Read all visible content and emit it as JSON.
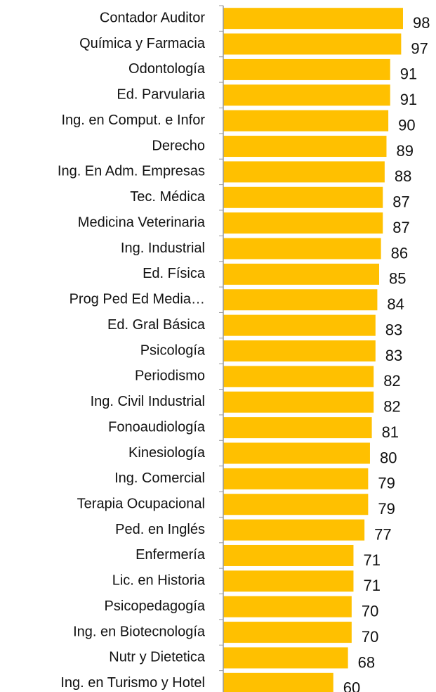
{
  "chart_data": {
    "type": "bar",
    "orientation": "horizontal",
    "categories": [
      "Contador Auditor",
      "Química y Farmacia",
      "Odontología",
      "Ed. Parvularia",
      "Ing. en Comput. e Infor",
      "Derecho",
      "Ing. En Adm. Empresas",
      "Tec. Médica",
      "Medicina Veterinaria",
      "Ing. Industrial",
      "Ed. Física",
      "Prog Ped Ed Media…",
      "Ed. Gral Básica",
      "Psicología",
      "Periodismo",
      "Ing. Civil Industrial",
      "Fonoaudiología",
      "Kinesiología",
      "Ing. Comercial",
      "Terapia Ocupacional",
      "Ped. en Inglés",
      "Enfermería",
      "Lic. en Historia",
      "Psicopedagogía",
      "Ing. en Biotecnología",
      "Nutr y Dietetica",
      "Ing. en Turismo y Hotel"
    ],
    "values": [
      98,
      97,
      91,
      91,
      90,
      89,
      88,
      87,
      87,
      86,
      85,
      84,
      83,
      83,
      82,
      82,
      81,
      80,
      79,
      79,
      77,
      71,
      71,
      70,
      70,
      68,
      60
    ],
    "color": "#FFC000",
    "xlim": [
      0,
      116
    ]
  }
}
